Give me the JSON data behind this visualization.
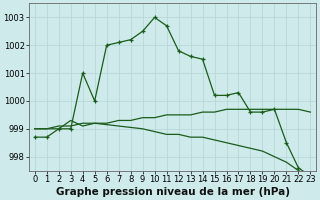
{
  "title": "Graphe pression niveau de la mer (hPa)",
  "background_color": "#ceeaea",
  "grid_color": "#b8d8d8",
  "line_color": "#1a5c1a",
  "hours": [
    0,
    1,
    2,
    3,
    4,
    5,
    6,
    7,
    8,
    9,
    10,
    11,
    12,
    13,
    14,
    15,
    16,
    17,
    18,
    19,
    20,
    21,
    22,
    23
  ],
  "series1": [
    998.7,
    998.7,
    999.0,
    999.0,
    1001.0,
    1000.0,
    1002.0,
    1002.1,
    1002.2,
    1002.5,
    1003.0,
    1002.7,
    1001.8,
    1001.6,
    1001.5,
    1000.2,
    1000.2,
    1000.3,
    999.6,
    999.6,
    999.7,
    998.5,
    997.6,
    997.3
  ],
  "series2": [
    999.0,
    999.0,
    999.1,
    999.1,
    999.2,
    999.2,
    999.2,
    999.3,
    999.3,
    999.4,
    999.4,
    999.5,
    999.5,
    999.5,
    999.6,
    999.6,
    999.7,
    999.7,
    999.7,
    999.7,
    999.7,
    999.7,
    999.7,
    999.6
  ],
  "series3": [
    999.0,
    999.0,
    999.0,
    999.3,
    999.1,
    999.2,
    999.15,
    999.1,
    999.05,
    999.0,
    998.9,
    998.8,
    998.8,
    998.7,
    998.7,
    998.6,
    998.5,
    998.4,
    998.3,
    998.2,
    998.0,
    997.8,
    997.5,
    997.3
  ],
  "ylim": [
    997.5,
    1003.5
  ],
  "yticks": [
    998,
    999,
    1000,
    1001,
    1002,
    1003
  ],
  "xlim": [
    -0.5,
    23.5
  ],
  "title_fontsize": 7.5,
  "tick_fontsize": 6
}
